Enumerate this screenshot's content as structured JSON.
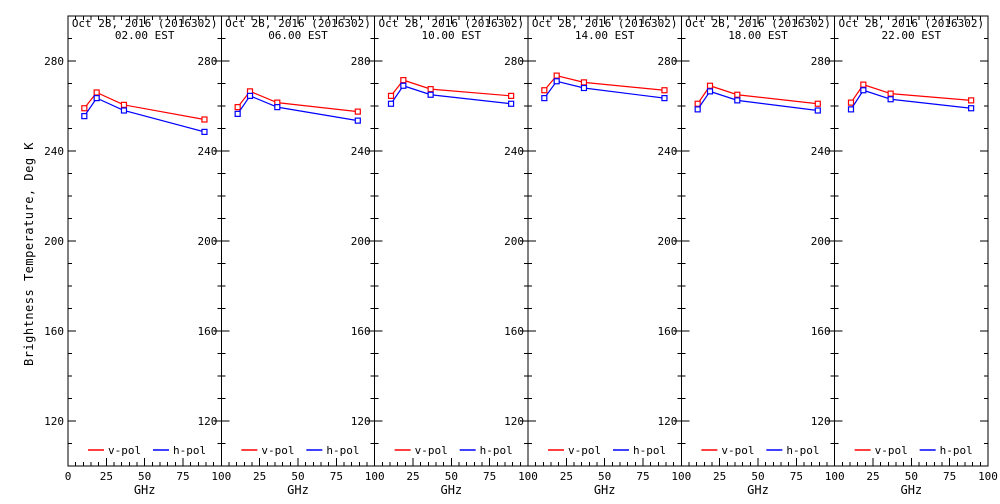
{
  "colors": {
    "v_pol": "#ff0000",
    "h_pol": "#0000ff",
    "axis": "#000000",
    "background": "#ffffff"
  },
  "chart_data": {
    "type": "line",
    "xlabel": "GHz",
    "ylabel": "Brightness Temperature, Deg K",
    "x_ghz": [
      10.65,
      18.7,
      36.5,
      89.0
    ],
    "xlim": [
      0,
      100
    ],
    "ylim": [
      100,
      300
    ],
    "x_major_ticks": [
      0,
      25,
      50,
      75,
      100
    ],
    "x_minor_step": 5,
    "y_major_ticks": [
      120,
      160,
      200,
      240,
      280
    ],
    "y_minor_step": 10,
    "grid": false,
    "legend_position": "bottom-inside-each-panel",
    "legend": [
      {
        "name": "v-pol",
        "color": "#ff0000"
      },
      {
        "name": "h-pol",
        "color": "#0000ff"
      }
    ],
    "panels": [
      {
        "title": "Oct 28, 2016 (2016302)",
        "subtitle": "02.00 EST",
        "series": [
          {
            "name": "v-pol",
            "color": "#ff0000",
            "values": [
              259.0,
              266.0,
              260.5,
              254.0
            ]
          },
          {
            "name": "h-pol",
            "color": "#0000ff",
            "values": [
              255.5,
              263.5,
              258.0,
              248.5
            ]
          }
        ]
      },
      {
        "title": "Oct 28, 2016 (2016302)",
        "subtitle": "06.00 EST",
        "series": [
          {
            "name": "v-pol",
            "color": "#ff0000",
            "values": [
              259.5,
              266.5,
              261.5,
              257.5
            ]
          },
          {
            "name": "h-pol",
            "color": "#0000ff",
            "values": [
              256.5,
              264.5,
              259.5,
              253.5
            ]
          }
        ]
      },
      {
        "title": "Oct 28, 2016 (2016302)",
        "subtitle": "10.00 EST",
        "series": [
          {
            "name": "v-pol",
            "color": "#ff0000",
            "values": [
              264.5,
              271.5,
              267.5,
              264.5
            ]
          },
          {
            "name": "h-pol",
            "color": "#0000ff",
            "values": [
              261.0,
              269.0,
              265.0,
              261.0
            ]
          }
        ]
      },
      {
        "title": "Oct 28, 2016 (2016302)",
        "subtitle": "14.00 EST",
        "series": [
          {
            "name": "v-pol",
            "color": "#ff0000",
            "values": [
              267.0,
              273.5,
              270.5,
              267.0
            ]
          },
          {
            "name": "h-pol",
            "color": "#0000ff",
            "values": [
              263.5,
              271.0,
              268.0,
              263.5
            ]
          }
        ]
      },
      {
        "title": "Oct 28, 2016 (2016302)",
        "subtitle": "18.00 EST",
        "series": [
          {
            "name": "v-pol",
            "color": "#ff0000",
            "values": [
              261.0,
              269.0,
              265.0,
              261.0
            ]
          },
          {
            "name": "h-pol",
            "color": "#0000ff",
            "values": [
              258.5,
              266.5,
              262.5,
              258.0
            ]
          }
        ]
      },
      {
        "title": "Oct 28, 2016 (2016302)",
        "subtitle": "22.00 EST",
        "series": [
          {
            "name": "v-pol",
            "color": "#ff0000",
            "values": [
              261.5,
              269.5,
              265.5,
              262.5
            ]
          },
          {
            "name": "h-pol",
            "color": "#0000ff",
            "values": [
              258.5,
              267.0,
              263.0,
              259.0
            ]
          }
        ]
      }
    ]
  }
}
